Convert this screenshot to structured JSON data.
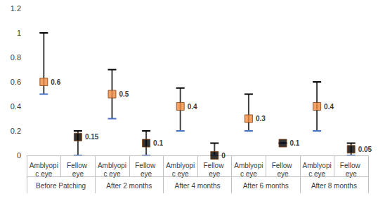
{
  "chart_data": {
    "type": "scatter",
    "categories": [
      "Amblyopic eye",
      "Fellow eye",
      "Amblyopic eye",
      "Fellow eye",
      "Amblyopic eye",
      "Fellow eye",
      "Amblyopic eye",
      "Fellow eye",
      "Amblyopic eye",
      "Fellow eye"
    ],
    "groups": [
      "Before Patching",
      "After 2 months",
      "After 4 months",
      "After 6 months",
      "After 8 months"
    ],
    "values": [
      0.6,
      0.15,
      0.5,
      0.1,
      0.4,
      0,
      0.3,
      0.1,
      0.4,
      0.05
    ],
    "low": [
      0.5,
      0,
      0.3,
      0,
      0.2,
      0,
      0.2,
      0.1,
      0.2,
      0
    ],
    "high": [
      1.0,
      0.2,
      0.7,
      0.2,
      0.55,
      0.1,
      0.5,
      0.1,
      0.6,
      0.1
    ],
    "colors": [
      "#f08a3e",
      "#000000",
      "#f08a3e",
      "#000000",
      "#f08a3e",
      "#000000",
      "#f08a3e",
      "#000000",
      "#f08a3e",
      "#000000"
    ],
    "ylim": [
      0,
      1.2
    ],
    "yticks": [
      0,
      0.2,
      0.4,
      0.6,
      0.8,
      1,
      1.2
    ],
    "grid": false,
    "data_labels": true,
    "marker": "square"
  }
}
